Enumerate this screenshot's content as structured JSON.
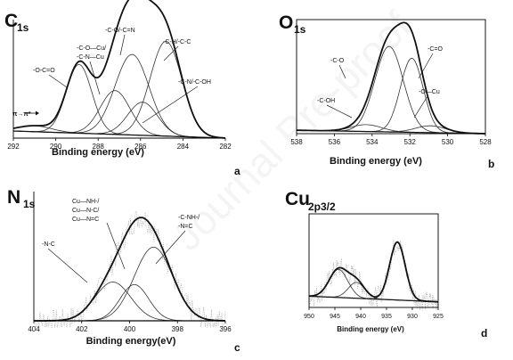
{
  "watermark": "Journal Pre-proof",
  "colors": {
    "envelope": "#111111",
    "component": "#333333",
    "raw": "#b0b0b0",
    "axis": "#000000"
  },
  "chart_data": [
    {
      "type": "line",
      "title": "C",
      "title_sub": "1s",
      "panel_letter": "a",
      "xlabel": "Binding energy (eV)",
      "x_reversed": true,
      "xlim": [
        292,
        282
      ],
      "xticks": [
        292,
        290,
        288,
        286,
        284,
        282
      ],
      "peaks": [
        {
          "center": 288.9,
          "height": 0.58,
          "width": 0.6
        },
        {
          "center": 287.2,
          "height": 0.37,
          "width": 0.7
        },
        {
          "center": 286.4,
          "height": 0.68,
          "width": 0.8
        },
        {
          "center": 284.8,
          "height": 0.8,
          "width": 0.75
        },
        {
          "center": 285.9,
          "height": 0.28,
          "width": 0.7
        },
        {
          "center": 291.0,
          "height": 0.05,
          "width": 0.8
        }
      ],
      "annotations": [
        "-O-C=O",
        "-C-O—Cu/",
        "-C-N—Cu",
        "-C-O/-C=N",
        "-C-H/-C-C",
        "-C-N/-C-OH",
        "π→π*"
      ]
    },
    {
      "type": "line",
      "title": "O",
      "title_sub": "1s",
      "panel_letter": "b",
      "xlabel": "Binding energy (eV)",
      "x_reversed": true,
      "xlim": [
        538,
        528
      ],
      "xticks": [
        538,
        536,
        534,
        532,
        530,
        528
      ],
      "peaks": [
        {
          "center": 533.1,
          "height": 0.75,
          "width": 0.75
        },
        {
          "center": 531.9,
          "height": 0.65,
          "width": 0.6
        },
        {
          "center": 534.3,
          "height": 0.06,
          "width": 0.8
        },
        {
          "center": 530.9,
          "height": 0.06,
          "width": 0.8
        }
      ],
      "annotations": [
        "-C-O",
        "-C=O",
        "-C-OH",
        "-O—Cu"
      ]
    },
    {
      "type": "line",
      "title": "N",
      "title_sub": "1s",
      "panel_letter": "c",
      "xlabel": "Binding energy(eV)",
      "x_reversed": true,
      "xlim": [
        404,
        396
      ],
      "xticks": [
        404,
        402,
        400,
        398,
        396
      ],
      "peaks": [
        {
          "center": 400.7,
          "height": 0.3,
          "width": 0.75
        },
        {
          "center": 399.8,
          "height": 0.28,
          "width": 0.6
        },
        {
          "center": 399.0,
          "height": 0.57,
          "width": 0.8
        }
      ],
      "annotations": [
        "Cu—NH-/",
        "Cu—N-C/",
        "Cu—N=C",
        "-N-C",
        "-C-NH-/",
        "-N=C"
      ]
    },
    {
      "type": "line",
      "title": "Cu",
      "title_sub": "2p3/2",
      "panel_letter": "d",
      "xlabel": "Binding energy (eV)",
      "x_reversed": true,
      "xlim": [
        950,
        925
      ],
      "xticks": [
        950,
        945,
        940,
        935,
        930,
        925
      ],
      "peaks": [
        {
          "center": 944.3,
          "height": 0.3,
          "width": 1.8
        },
        {
          "center": 940.8,
          "height": 0.17,
          "width": 1.6
        },
        {
          "center": 932.9,
          "height": 0.62,
          "width": 1.5
        }
      ],
      "annotations": []
    }
  ]
}
